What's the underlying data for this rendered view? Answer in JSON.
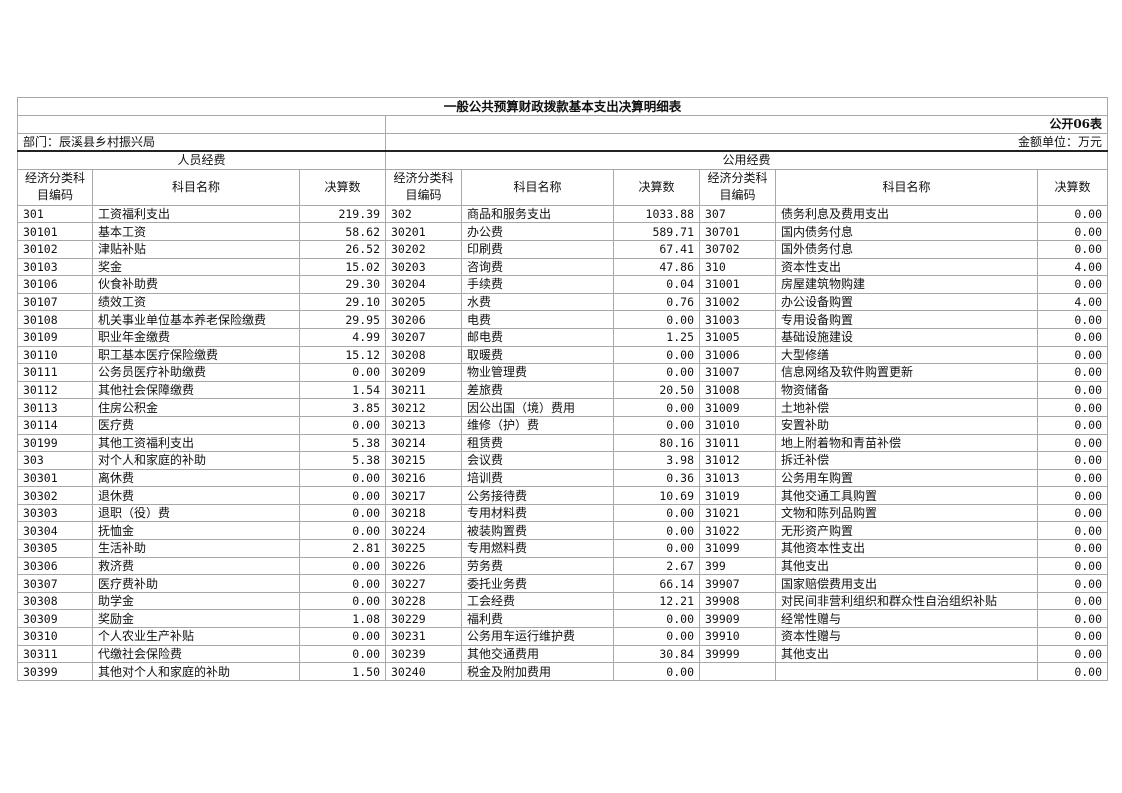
{
  "title": "一般公共预算财政拨款基本支出决算明细表",
  "form_no": "公开06表",
  "department": "部门：辰溪县乡村振兴局",
  "unit": "金额单位：万元",
  "groups": {
    "personnel": "人员经费",
    "public": "公用经费"
  },
  "headers": {
    "code": "经济分类科目编码",
    "name": "科目名称",
    "amount": "决算数"
  },
  "rows": [
    [
      [
        "301",
        "工资福利支出",
        "219.39"
      ],
      [
        "302",
        "商品和服务支出",
        "1033.88"
      ],
      [
        "307",
        "债务利息及费用支出",
        "0.00"
      ]
    ],
    [
      [
        "30101",
        "基本工资",
        "58.62"
      ],
      [
        "30201",
        "办公费",
        "589.71"
      ],
      [
        "30701",
        "国内债务付息",
        "0.00"
      ]
    ],
    [
      [
        "30102",
        "津贴补贴",
        "26.52"
      ],
      [
        "30202",
        "印刷费",
        "67.41"
      ],
      [
        "30702",
        "国外债务付息",
        "0.00"
      ]
    ],
    [
      [
        "30103",
        "奖金",
        "15.02"
      ],
      [
        "30203",
        "咨询费",
        "47.86"
      ],
      [
        "310",
        "资本性支出",
        "4.00"
      ]
    ],
    [
      [
        "30106",
        "伙食补助费",
        "29.30"
      ],
      [
        "30204",
        "手续费",
        "0.04"
      ],
      [
        "31001",
        "房屋建筑物购建",
        "0.00"
      ]
    ],
    [
      [
        "30107",
        "绩效工资",
        "29.10"
      ],
      [
        "30205",
        "水费",
        "0.76"
      ],
      [
        "31002",
        "办公设备购置",
        "4.00"
      ]
    ],
    [
      [
        "30108",
        "机关事业单位基本养老保险缴费",
        "29.95"
      ],
      [
        "30206",
        "电费",
        "0.00"
      ],
      [
        "31003",
        "专用设备购置",
        "0.00"
      ]
    ],
    [
      [
        "30109",
        "职业年金缴费",
        "4.99"
      ],
      [
        "30207",
        "邮电费",
        "1.25"
      ],
      [
        "31005",
        "基础设施建设",
        "0.00"
      ]
    ],
    [
      [
        "30110",
        "职工基本医疗保险缴费",
        "15.12"
      ],
      [
        "30208",
        "取暖费",
        "0.00"
      ],
      [
        "31006",
        "大型修缮",
        "0.00"
      ]
    ],
    [
      [
        "30111",
        "公务员医疗补助缴费",
        "0.00"
      ],
      [
        "30209",
        "物业管理费",
        "0.00"
      ],
      [
        "31007",
        "信息网络及软件购置更新",
        "0.00"
      ]
    ],
    [
      [
        "30112",
        "其他社会保障缴费",
        "1.54"
      ],
      [
        "30211",
        "差旅费",
        "20.50"
      ],
      [
        "31008",
        "物资储备",
        "0.00"
      ]
    ],
    [
      [
        "30113",
        "住房公积金",
        "3.85"
      ],
      [
        "30212",
        "因公出国（境）费用",
        "0.00"
      ],
      [
        "31009",
        "土地补偿",
        "0.00"
      ]
    ],
    [
      [
        "30114",
        "医疗费",
        "0.00"
      ],
      [
        "30213",
        "维修（护）费",
        "0.00"
      ],
      [
        "31010",
        "安置补助",
        "0.00"
      ]
    ],
    [
      [
        "30199",
        "其他工资福利支出",
        "5.38"
      ],
      [
        "30214",
        "租赁费",
        "80.16"
      ],
      [
        "31011",
        "地上附着物和青苗补偿",
        "0.00"
      ]
    ],
    [
      [
        "303",
        "对个人和家庭的补助",
        "5.38"
      ],
      [
        "30215",
        "会议费",
        "3.98"
      ],
      [
        "31012",
        "拆迁补偿",
        "0.00"
      ]
    ],
    [
      [
        "30301",
        "离休费",
        "0.00"
      ],
      [
        "30216",
        "培训费",
        "0.36"
      ],
      [
        "31013",
        "公务用车购置",
        "0.00"
      ]
    ],
    [
      [
        "30302",
        "退休费",
        "0.00"
      ],
      [
        "30217",
        "公务接待费",
        "10.69"
      ],
      [
        "31019",
        "其他交通工具购置",
        "0.00"
      ]
    ],
    [
      [
        "30303",
        "退职（役）费",
        "0.00"
      ],
      [
        "30218",
        "专用材料费",
        "0.00"
      ],
      [
        "31021",
        "文物和陈列品购置",
        "0.00"
      ]
    ],
    [
      [
        "30304",
        "抚恤金",
        "0.00"
      ],
      [
        "30224",
        "被装购置费",
        "0.00"
      ],
      [
        "31022",
        "无形资产购置",
        "0.00"
      ]
    ],
    [
      [
        "30305",
        "生活补助",
        "2.81"
      ],
      [
        "30225",
        "专用燃料费",
        "0.00"
      ],
      [
        "31099",
        "其他资本性支出",
        "0.00"
      ]
    ],
    [
      [
        "30306",
        "救济费",
        "0.00"
      ],
      [
        "30226",
        "劳务费",
        "2.67"
      ],
      [
        "399",
        "其他支出",
        "0.00"
      ]
    ],
    [
      [
        "30307",
        "医疗费补助",
        "0.00"
      ],
      [
        "30227",
        "委托业务费",
        "66.14"
      ],
      [
        "39907",
        "国家赔偿费用支出",
        "0.00"
      ]
    ],
    [
      [
        "30308",
        "助学金",
        "0.00"
      ],
      [
        "30228",
        "工会经费",
        "12.21"
      ],
      [
        "39908",
        "对民间非营利组织和群众性自治组织补贴",
        "0.00"
      ]
    ],
    [
      [
        "30309",
        "奖励金",
        "1.08"
      ],
      [
        "30229",
        "福利费",
        "0.00"
      ],
      [
        "39909",
        "经常性赠与",
        "0.00"
      ]
    ],
    [
      [
        "30310",
        "个人农业生产补贴",
        "0.00"
      ],
      [
        "30231",
        "公务用车运行维护费",
        "0.00"
      ],
      [
        "39910",
        "资本性赠与",
        "0.00"
      ]
    ],
    [
      [
        "30311",
        "代缴社会保险费",
        "0.00"
      ],
      [
        "30239",
        "其他交通费用",
        "30.84"
      ],
      [
        "39999",
        "其他支出",
        "0.00"
      ]
    ],
    [
      [
        "30399",
        "其他对个人和家庭的补助",
        "1.50"
      ],
      [
        "30240",
        "税金及附加费用",
        "0.00"
      ],
      [
        "",
        "",
        "0.00"
      ]
    ]
  ]
}
